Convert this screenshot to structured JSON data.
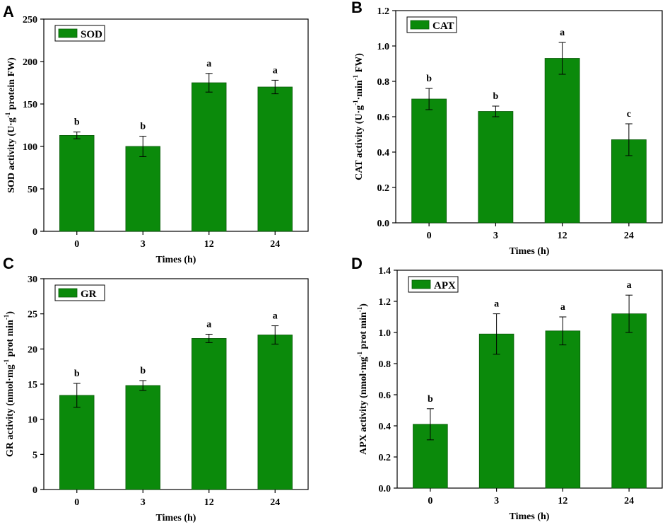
{
  "colors": {
    "bar_fill": "#0b8a0b",
    "bar_stroke": "#0a5a0a",
    "axis": "#000000"
  },
  "chart_data": [
    {
      "type": "bar",
      "panel": "A",
      "legend": "SOD",
      "categories": [
        "0",
        "3",
        "12",
        "24"
      ],
      "values": [
        113,
        100,
        175,
        170
      ],
      "errors": [
        4,
        12,
        11,
        8
      ],
      "significance": [
        "b",
        "b",
        "a",
        "a"
      ],
      "ylim": [
        0,
        250
      ],
      "yticks": [
        "0",
        "50",
        "100",
        "150",
        "200",
        "250"
      ],
      "xlabel": "Times (h)",
      "ylabel": {
        "pre": "SOD activity (U·g",
        "sup": "-1",
        "post": " protein FW)"
      }
    },
    {
      "type": "bar",
      "panel": "B",
      "legend": "CAT",
      "categories": [
        "0",
        "3",
        "12",
        "24"
      ],
      "values": [
        0.7,
        0.63,
        0.93,
        0.47
      ],
      "errors": [
        0.06,
        0.03,
        0.09,
        0.09
      ],
      "significance": [
        "b",
        "b",
        "a",
        "c"
      ],
      "ylim": [
        0,
        1.2
      ],
      "yticks": [
        "0.0",
        "0.2",
        "0.4",
        "0.6",
        "0.8",
        "1.0",
        "1.2"
      ],
      "xlabel": "Times (h)",
      "ylabel": {
        "pre": "CAT activity (U·g",
        "sup": "-1",
        "mid": "·min",
        "sup2": "-1",
        "post": " FW)"
      }
    },
    {
      "type": "bar",
      "panel": "C",
      "legend": "GR",
      "categories": [
        "0",
        "3",
        "12",
        "24"
      ],
      "values": [
        13.4,
        14.8,
        21.5,
        22.0
      ],
      "errors": [
        1.7,
        0.7,
        0.6,
        1.3
      ],
      "significance": [
        "b",
        "b",
        "a",
        "a"
      ],
      "ylim": [
        0,
        30
      ],
      "yticks": [
        "0",
        "5",
        "10",
        "15",
        "20",
        "25",
        "30"
      ],
      "xlabel": "Times (h)",
      "ylabel": {
        "pre": "GR activity (nmol·mg",
        "sup": "-1",
        "post": " prot min",
        "sup2": "-1",
        "end": ")"
      }
    },
    {
      "type": "bar",
      "panel": "D",
      "legend": "APX",
      "categories": [
        "0",
        "3",
        "12",
        "24"
      ],
      "values": [
        0.41,
        0.99,
        1.01,
        1.12
      ],
      "errors": [
        0.1,
        0.13,
        0.09,
        0.12
      ],
      "significance": [
        "b",
        "a",
        "a",
        "a"
      ],
      "ylim": [
        0,
        1.4
      ],
      "yticks": [
        "0.0",
        "0.2",
        "0.4",
        "0.6",
        "0.8",
        "1.0",
        "1.2",
        "1.4"
      ],
      "xlabel": "Times (h)",
      "ylabel": {
        "pre": "APX activity (nmol·mg",
        "sup": "-1",
        "post": " prot min",
        "sup2": "-1",
        "end": ")"
      }
    }
  ]
}
